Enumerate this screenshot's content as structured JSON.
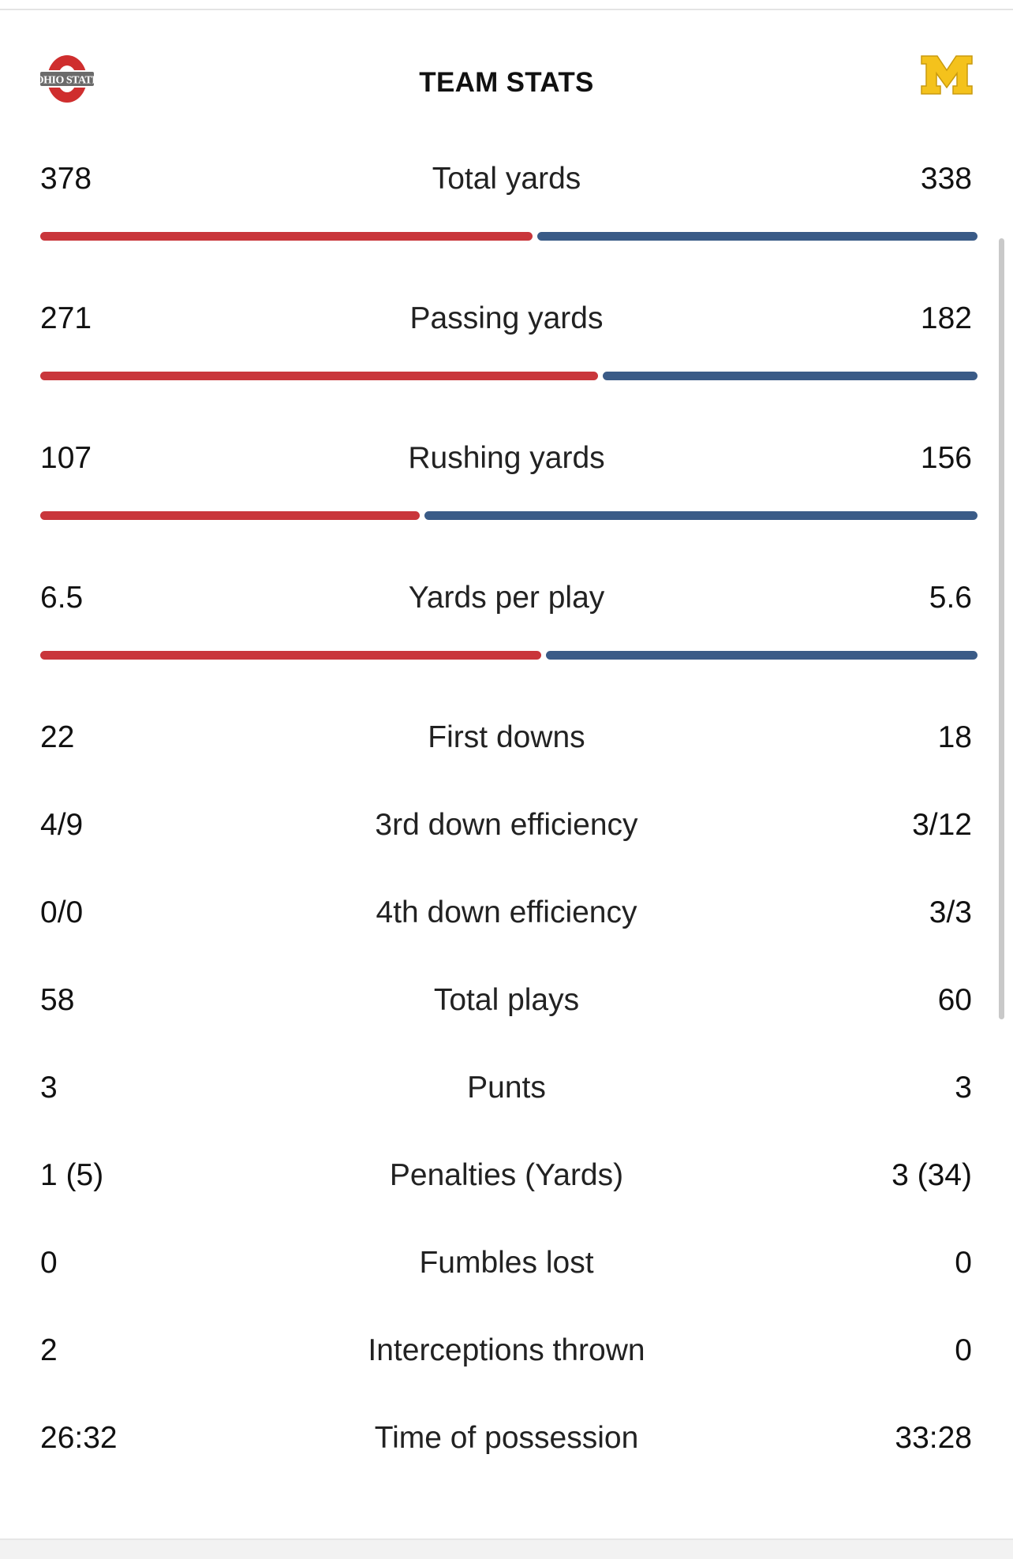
{
  "header": {
    "title": "TEAM STATS",
    "home_logo_icon": "ohio-state-logo-icon",
    "away_logo_icon": "michigan-block-m-logo-icon"
  },
  "colors": {
    "home_bar": "#c9363b",
    "away_bar": "#3a5b87",
    "ohio_scarlet": "#cf2e2e",
    "ohio_gray": "#6b6b6b",
    "michigan_maize": "#f4c21c"
  },
  "bar_stats": [
    {
      "label": "Total yards",
      "home": "378",
      "away": "338",
      "home_value": 378,
      "away_value": 338
    },
    {
      "label": "Passing yards",
      "home": "271",
      "away": "182",
      "home_value": 271,
      "away_value": 182
    },
    {
      "label": "Rushing yards",
      "home": "107",
      "away": "156",
      "home_value": 107,
      "away_value": 156
    },
    {
      "label": "Yards per play",
      "home": "6.5",
      "away": "5.6",
      "home_value": 6.5,
      "away_value": 5.6
    }
  ],
  "plain_stats": [
    {
      "label": "First downs",
      "home": "22",
      "away": "18"
    },
    {
      "label": "3rd down efficiency",
      "home": "4/9",
      "away": "3/12"
    },
    {
      "label": "4th down efficiency",
      "home": "0/0",
      "away": "3/3"
    },
    {
      "label": "Total plays",
      "home": "58",
      "away": "60"
    },
    {
      "label": "Punts",
      "home": "3",
      "away": "3"
    },
    {
      "label": "Penalties (Yards)",
      "home": "1 (5)",
      "away": "3 (34)"
    },
    {
      "label": "Fumbles lost",
      "home": "0",
      "away": "0"
    },
    {
      "label": "Interceptions thrown",
      "home": "2",
      "away": "0"
    },
    {
      "label": "Time of possession",
      "home": "26:32",
      "away": "33:28"
    }
  ]
}
